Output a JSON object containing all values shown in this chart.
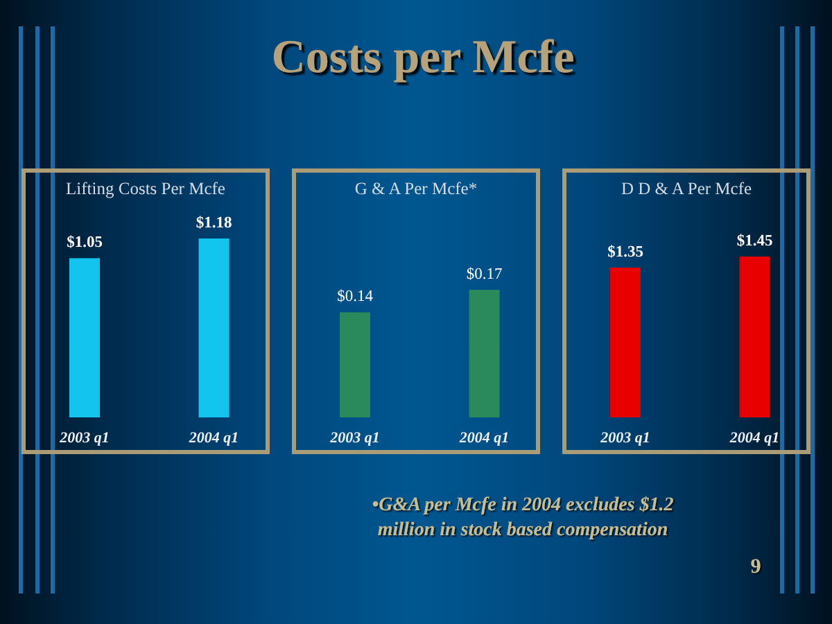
{
  "chart_data": [
    {
      "type": "other",
      "title": "Costs per Mcfe",
      "annotations": [
        "•G&A per Mcfe in 2004 excludes $1.2 million in stock based compensation",
        "9"
      ]
    },
    {
      "type": "bar",
      "title": "Lifting Costs Per Mcfe",
      "categories": [
        "2003 q1",
        "2004 q1"
      ],
      "values": [
        1.05,
        1.18
      ],
      "color": "#12c4ee",
      "value_labels": [
        "$1.05",
        "$1.18"
      ],
      "tick_labels": "x"
    },
    {
      "type": "bar",
      "title": "G & A Per Mcfe*",
      "categories": [
        "2003 q1",
        "2004 q1"
      ],
      "values": [
        0.14,
        0.17
      ],
      "color": "#2a8a5c",
      "value_labels": [
        "$0.14",
        "$0.17"
      ],
      "tick_labels": "x"
    },
    {
      "type": "bar",
      "title": "D D & A Per Mcfe",
      "categories": [
        "2003 q1",
        "2004 q1"
      ],
      "values": [
        1.35,
        1.45
      ],
      "color": "#e80000",
      "value_labels": [
        "$1.35",
        "$1.45"
      ],
      "tick_labels": "x"
    }
  ]
}
